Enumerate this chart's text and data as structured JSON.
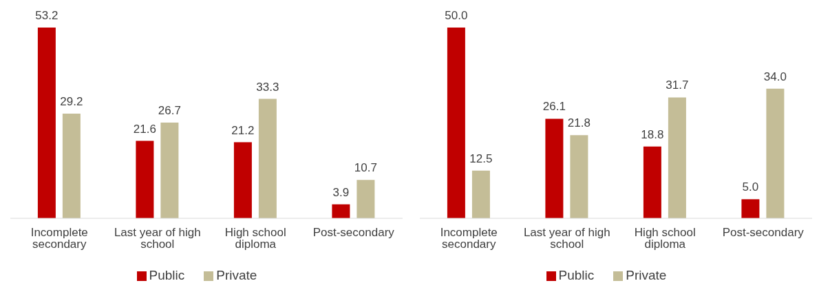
{
  "chart_data": [
    {
      "type": "bar",
      "categories": [
        "Incomplete secondary",
        "Last year of high school",
        "High school diploma",
        "Post-secondary"
      ],
      "legend": "bottom",
      "grid": false,
      "series": [
        {
          "name": "Public",
          "color": "#c00000",
          "values": [
            53.2,
            21.6,
            21.2,
            3.9
          ],
          "value_labels": [
            "53.2",
            "21.6",
            "21.2",
            "3.9"
          ]
        },
        {
          "name": "Private",
          "color": "#c4bd97",
          "values": [
            29.2,
            26.7,
            33.3,
            10.7
          ],
          "value_labels": [
            "29.2",
            "26.7",
            "33.3",
            "10.7"
          ]
        }
      ]
    },
    {
      "type": "bar",
      "categories": [
        "Incomplete secondary",
        "Last year of high school",
        "High school diploma",
        "Post-secondary"
      ],
      "legend": "bottom",
      "grid": false,
      "series": [
        {
          "name": "Public",
          "color": "#c00000",
          "values": [
            50.0,
            26.1,
            18.8,
            5.0
          ],
          "value_labels": [
            "50.0",
            "26.1",
            "18.8",
            "5.0"
          ]
        },
        {
          "name": "Private",
          "color": "#c4bd97",
          "values": [
            12.5,
            21.8,
            31.7,
            34.0
          ],
          "value_labels": [
            "12.5",
            "21.8",
            "31.7",
            "34.0"
          ]
        }
      ]
    }
  ]
}
